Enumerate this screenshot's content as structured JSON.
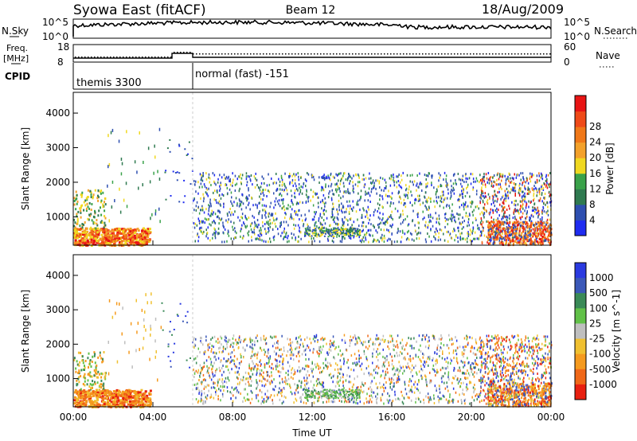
{
  "header": {
    "left": "Syowa East (fitACF)",
    "center": "Beam 12",
    "right": "18/Aug/2009"
  },
  "panels": {
    "nsky_label": "N.Sky",
    "nsky_ticks": [
      "10^5",
      "10^0"
    ],
    "nsearch_label": "N.Search",
    "nsearch_ticks": [
      "10^5",
      "10^0"
    ],
    "freq_label_1": "Freq.",
    "freq_label_2": "[MHz]",
    "freq_ticks": [
      "18",
      "8"
    ],
    "nave_label": "Nave",
    "nave_ticks": [
      "60",
      "0"
    ],
    "cpid_label": "CPID",
    "cpid_modes": [
      "themis 3300",
      "normal (fast) -151"
    ]
  },
  "colors": {
    "power_scale": [
      "#1f2cf0",
      "#2e4fb0",
      "#2f7a50",
      "#3aa24a",
      "#f0d820",
      "#f3a12a",
      "#f07818",
      "#ef4a18",
      "#e81414"
    ],
    "velocity_scale": [
      "#2a3ae0",
      "#3b58b8",
      "#3a8a57",
      "#61c148",
      "#bfbfbf",
      "#f0c030",
      "#f59a1e",
      "#f06818",
      "#e82010"
    ]
  },
  "chart_data": [
    {
      "type": "heatmap",
      "title": "",
      "ylabel": "Slant Range [km]",
      "xlabel": "",
      "x_ticks": [
        "00:00",
        "04:00",
        "08:00",
        "12:00",
        "16:00",
        "20:00",
        "00:00"
      ],
      "y_ticks": [
        "1000",
        "2000",
        "3000",
        "4000"
      ],
      "ylim": [
        180,
        4600
      ],
      "colorbar": {
        "label": "Power [dB]",
        "ticks": [
          "4",
          "8",
          "12",
          "16",
          "20",
          "24",
          "28"
        ]
      }
    },
    {
      "type": "heatmap",
      "title": "",
      "ylabel": "Slant Range [km]",
      "xlabel": "Time UT",
      "x_ticks": [
        "00:00",
        "04:00",
        "08:00",
        "12:00",
        "16:00",
        "20:00",
        "00:00"
      ],
      "y_ticks": [
        "1000",
        "2000",
        "3000",
        "4000"
      ],
      "ylim": [
        180,
        4600
      ],
      "colorbar": {
        "label": "Velocity [m s^-1]",
        "ticks": [
          "1000",
          "500",
          "100",
          "25",
          "-25",
          "-100",
          "-500",
          "-1000"
        ]
      }
    }
  ]
}
